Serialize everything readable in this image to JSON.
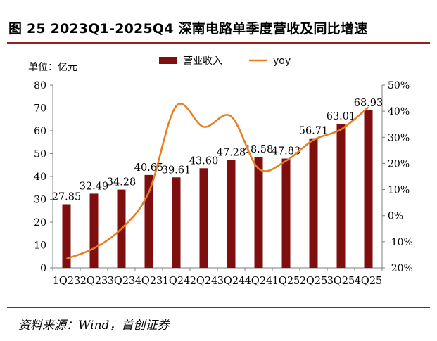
{
  "figure": {
    "title": "图 25 2023Q1-2025Q4 深南电路单季度营收及同比增速",
    "source": "资料来源：Wind，首创证券"
  },
  "chart_data": {
    "type": "bar",
    "unit_label": "单位：亿元",
    "categories": [
      "1Q23",
      "2Q23",
      "3Q23",
      "4Q23",
      "1Q24",
      "2Q24",
      "3Q24",
      "4Q24",
      "1Q25",
      "2Q25",
      "3Q25",
      "4Q25"
    ],
    "series": [
      {
        "name": "营业收入",
        "type": "bar",
        "axis": "left",
        "color": "#7f0f0f",
        "values": [
          27.85,
          32.49,
          34.28,
          40.65,
          39.61,
          43.6,
          47.28,
          48.58,
          47.83,
          56.71,
          63.01,
          68.93
        ],
        "labels": [
          "27.85",
          "32.49",
          "34.28",
          "40.65",
          "39.61",
          "43.60",
          "47.28",
          "48.58",
          "47.83",
          "56.71",
          "63.01",
          "68.93"
        ]
      },
      {
        "name": "yoy",
        "type": "line",
        "axis": "right",
        "color": "#e87d1e",
        "values": [
          -16.5,
          -12.5,
          -5.0,
          9.0,
          42.0,
          34.0,
          38.0,
          18.0,
          21.0,
          29.0,
          33.0,
          41.5
        ]
      }
    ],
    "ylim_left": [
      0,
      80
    ],
    "ylim_right": [
      -20,
      50
    ],
    "yticks_left": [
      "0",
      "10",
      "20",
      "30",
      "40",
      "50",
      "60",
      "70",
      "80"
    ],
    "yticks_right": [
      "-20%",
      "-10%",
      "0%",
      "10%",
      "20%",
      "30%",
      "40%",
      "50%"
    ],
    "legend_position": "top",
    "grid": false
  }
}
